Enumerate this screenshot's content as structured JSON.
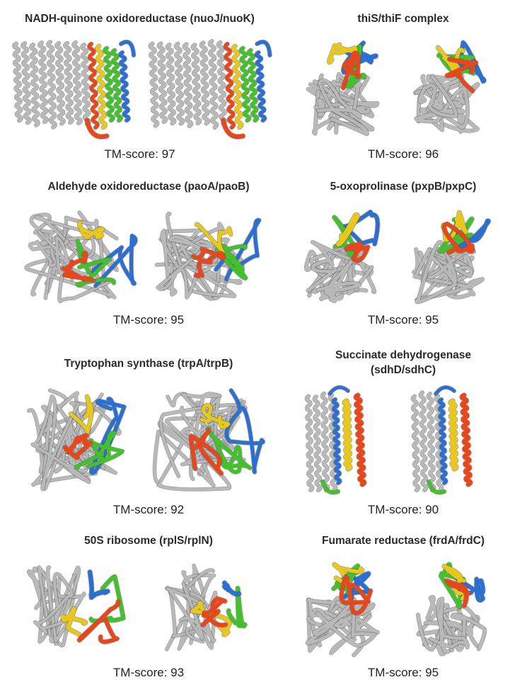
{
  "colors": {
    "backbone": "#b9b9b9",
    "backbone_dark": "#5a5a5a",
    "segment_colors": [
      "#e8471c",
      "#e9c81a",
      "#43c12c",
      "#2b6fd0"
    ]
  },
  "panels": [
    {
      "id": "nuo",
      "title": [
        "NADH-quinone oxidoreductase (nuoJ/nuoK)"
      ],
      "score_label": "TM-score: 97",
      "style": "helical-bundle"
    },
    {
      "id": "this",
      "title": [
        "thiS/thiF complex"
      ],
      "score_label": "TM-score: 96",
      "style": "globular-top"
    },
    {
      "id": "pao",
      "title": [
        "Aldehyde oxidoreductase (paoA/paoB)"
      ],
      "score_label": "TM-score: 95",
      "style": "globular-right"
    },
    {
      "id": "pxp",
      "title": [
        "5-oxoprolinase (pxpB/pxpC)"
      ],
      "score_label": "TM-score: 95",
      "style": "globular-top"
    },
    {
      "id": "trp",
      "title": [
        "Tryptophan synthase (trpA/trpB)"
      ],
      "score_label": "TM-score: 92",
      "style": "globular-right"
    },
    {
      "id": "sdh",
      "title": [
        "Succinate dehydrogenase",
        "(sdhD/sdhC)"
      ],
      "score_label": "TM-score: 90",
      "style": "membrane-pair"
    },
    {
      "id": "rpl",
      "title": [
        "50S ribosome (rplS/rplN)"
      ],
      "score_label": "TM-score: 93",
      "style": "loops"
    },
    {
      "id": "frd",
      "title": [
        "Fumarate reductase (frdA/frdC)"
      ],
      "score_label": "TM-score: 95",
      "style": "globular-top"
    }
  ]
}
